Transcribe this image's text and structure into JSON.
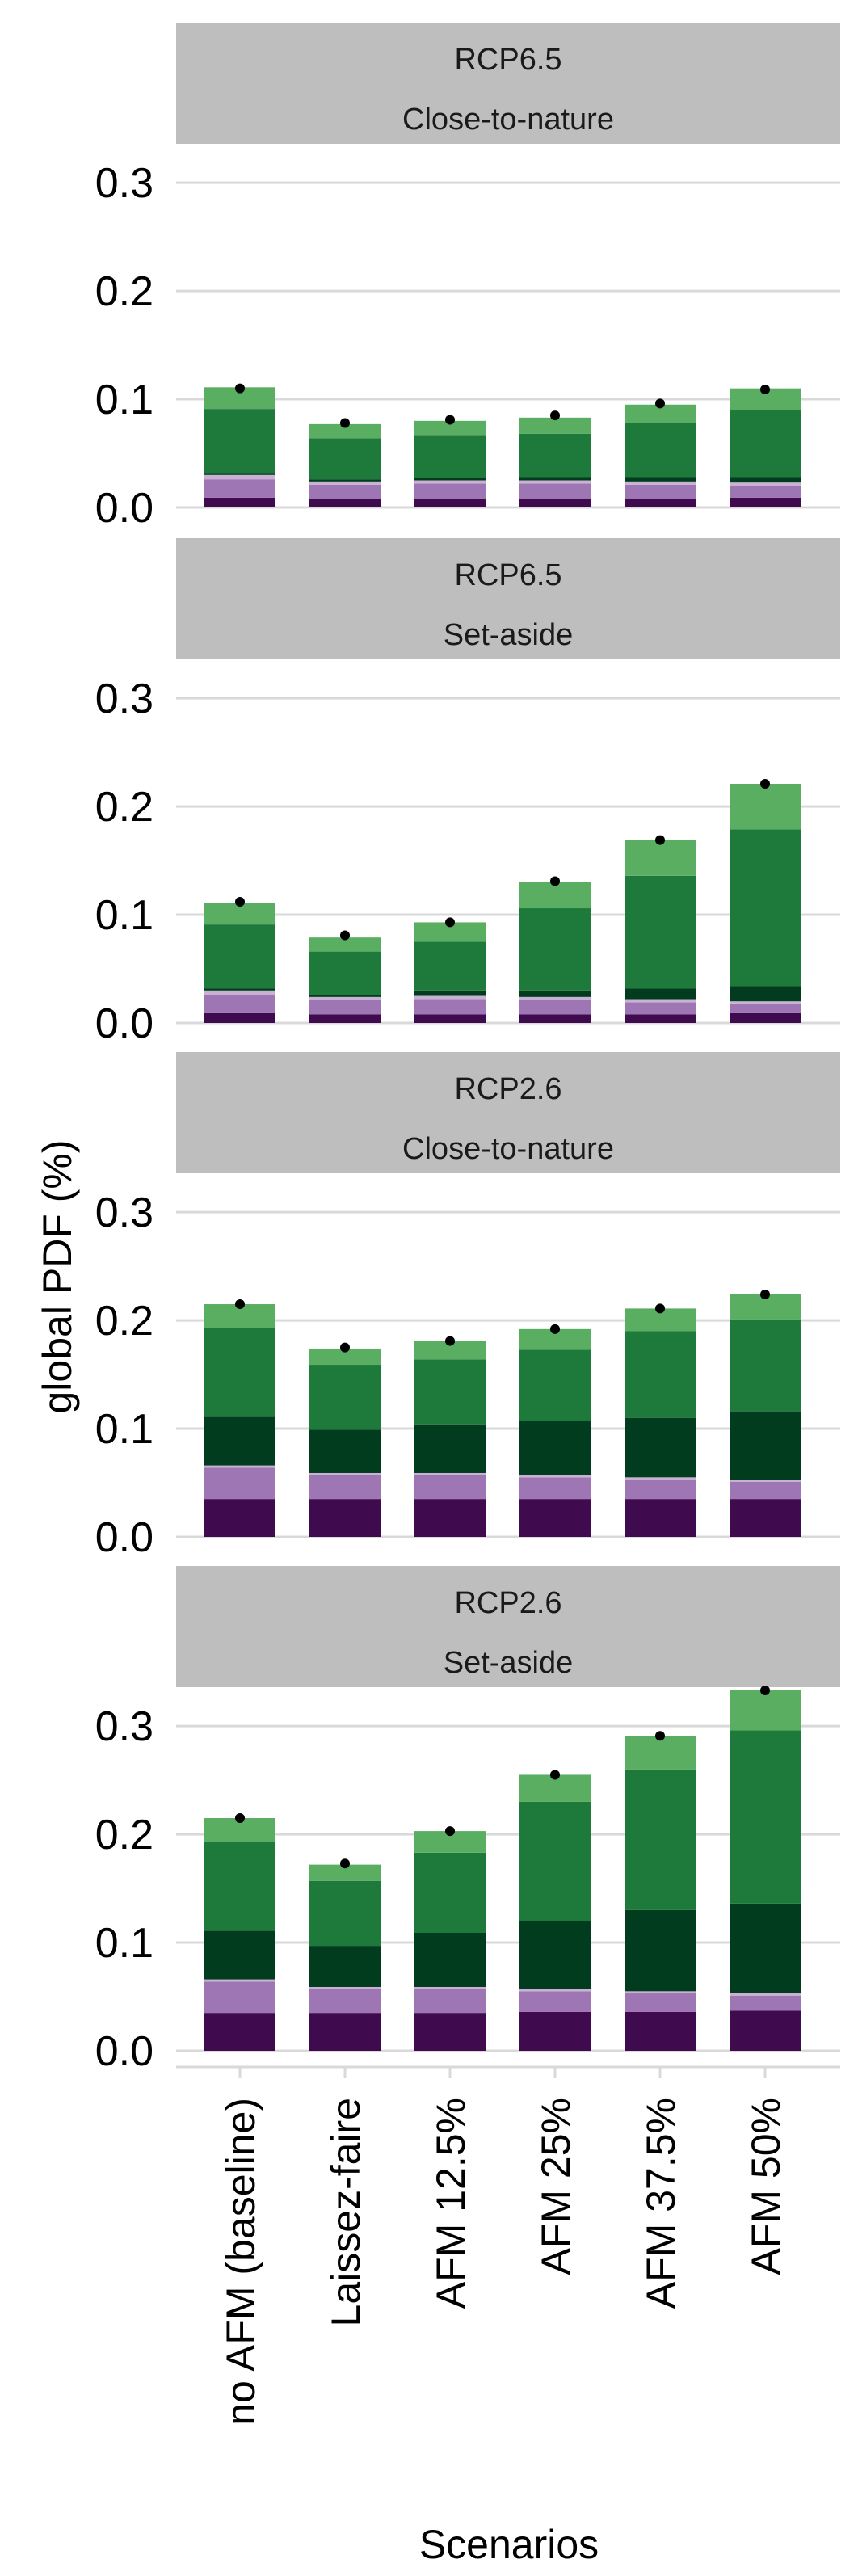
{
  "chart_data": {
    "type": "bar",
    "stacked": true,
    "xlabel": "Scenarios",
    "ylabel": "global PDF (%)",
    "ylim": [
      0,
      0.33
    ],
    "yticks": [
      0.0,
      0.1,
      0.2,
      0.3
    ],
    "ytick_labels": [
      "0.0",
      "0.1",
      "0.2",
      "0.3"
    ],
    "grid": "horizontal major",
    "legend": "none",
    "categories": [
      "no AFM (baseline)",
      "Laissez-faire",
      "AFM 12.5%",
      "AFM 25%",
      "AFM 37.5%",
      "AFM 50%"
    ],
    "segment_colors": [
      "#3f0a4e",
      "#9e76b4",
      "#c9b1d4",
      "#003c1d",
      "#1e7a3b",
      "#5aae61"
    ],
    "point_color": "#000000",
    "panels": [
      {
        "strip": [
          "RCP6.5",
          "Close-to-nature"
        ],
        "stacks": [
          [
            0.009,
            0.017,
            0.004,
            0.002,
            0.059,
            0.02
          ],
          [
            0.008,
            0.013,
            0.003,
            0.002,
            0.038,
            0.013
          ],
          [
            0.008,
            0.014,
            0.003,
            0.002,
            0.04,
            0.013
          ],
          [
            0.008,
            0.014,
            0.003,
            0.003,
            0.04,
            0.015
          ],
          [
            0.008,
            0.013,
            0.003,
            0.004,
            0.05,
            0.017
          ],
          [
            0.009,
            0.011,
            0.003,
            0.005,
            0.062,
            0.02
          ]
        ],
        "totals": [
          0.11,
          0.078,
          0.081,
          0.085,
          0.096,
          0.109
        ]
      },
      {
        "strip": [
          "RCP6.5",
          "Set-aside"
        ],
        "stacks": [
          [
            0.009,
            0.017,
            0.004,
            0.002,
            0.059,
            0.02
          ],
          [
            0.008,
            0.013,
            0.003,
            0.002,
            0.04,
            0.013
          ],
          [
            0.008,
            0.014,
            0.003,
            0.005,
            0.045,
            0.018
          ],
          [
            0.008,
            0.013,
            0.003,
            0.006,
            0.076,
            0.024
          ],
          [
            0.008,
            0.011,
            0.003,
            0.01,
            0.104,
            0.033
          ],
          [
            0.009,
            0.009,
            0.002,
            0.014,
            0.145,
            0.042
          ]
        ],
        "totals": [
          0.112,
          0.081,
          0.093,
          0.131,
          0.169,
          0.221
        ]
      },
      {
        "strip": [
          "RCP2.6",
          "Close-to-nature"
        ],
        "stacks": [
          [
            0.035,
            0.029,
            0.002,
            0.045,
            0.082,
            0.022
          ],
          [
            0.035,
            0.022,
            0.002,
            0.04,
            0.06,
            0.015
          ],
          [
            0.035,
            0.022,
            0.002,
            0.045,
            0.06,
            0.017
          ],
          [
            0.035,
            0.02,
            0.002,
            0.05,
            0.066,
            0.019
          ],
          [
            0.035,
            0.018,
            0.002,
            0.055,
            0.08,
            0.021
          ],
          [
            0.035,
            0.016,
            0.002,
            0.063,
            0.085,
            0.023
          ]
        ],
        "totals": [
          0.215,
          0.175,
          0.181,
          0.192,
          0.211,
          0.224
        ]
      },
      {
        "strip": [
          "RCP2.6",
          "Set-aside"
        ],
        "stacks": [
          [
            0.035,
            0.029,
            0.002,
            0.045,
            0.082,
            0.022
          ],
          [
            0.035,
            0.022,
            0.002,
            0.038,
            0.06,
            0.015
          ],
          [
            0.035,
            0.022,
            0.002,
            0.05,
            0.074,
            0.02
          ],
          [
            0.036,
            0.019,
            0.002,
            0.063,
            0.11,
            0.025
          ],
          [
            0.036,
            0.017,
            0.002,
            0.075,
            0.13,
            0.031
          ],
          [
            0.037,
            0.014,
            0.002,
            0.083,
            0.16,
            0.037
          ]
        ],
        "totals": [
          0.215,
          0.173,
          0.203,
          0.255,
          0.291,
          0.333
        ]
      }
    ]
  }
}
